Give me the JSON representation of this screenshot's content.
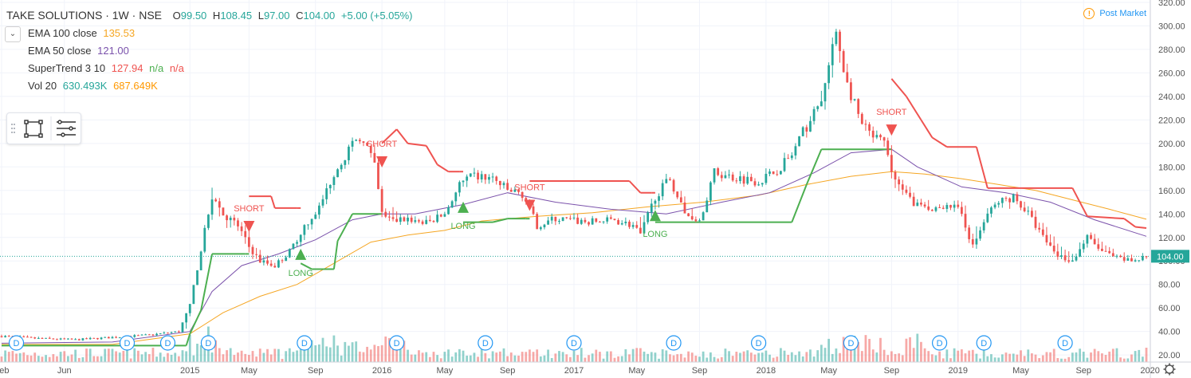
{
  "header": {
    "symbol": "TAKE SOLUTIONS · 1W · NSE",
    "o_label": "O",
    "o": "99.50",
    "h_label": "H",
    "h": "108.45",
    "l_label": "L",
    "l": "97.00",
    "c_label": "C",
    "c": "104.00",
    "change": "+5.00 (+5.05%)"
  },
  "indicators": [
    {
      "label": "EMA 100 close",
      "value": "135.53",
      "color": "#f5a623"
    },
    {
      "label": "EMA 50 close",
      "value": "121.00",
      "color": "#7b52ab"
    },
    {
      "label": "SuperTrend 3 10",
      "value": "127.94",
      "extra1": "n/a",
      "extra2": "n/a",
      "color": "#ef5350",
      "color2": "#4caf50"
    },
    {
      "label": "Vol 20",
      "value": "630.493K",
      "extra1": "687.649K",
      "color": "#26a69a",
      "color2": "#ff9800"
    }
  ],
  "status": {
    "label": "Post Market"
  },
  "price_tag": "104.00",
  "chart_data": {
    "type": "line",
    "x_ticks": [
      "Feb",
      "Jun",
      "2015",
      "May",
      "Sep",
      "2016",
      "May",
      "Sep",
      "2017",
      "May",
      "Sep",
      "2018",
      "May",
      "Sep",
      "2019",
      "May",
      "Sep",
      "2020"
    ],
    "y_ticks": [
      20,
      40,
      60,
      80,
      100,
      120,
      140,
      160,
      180,
      200,
      220,
      240,
      260,
      280,
      300,
      320
    ],
    "ylim": [
      14,
      322
    ],
    "x_index_range": [
      0,
      310
    ],
    "x_tick_index": [
      0,
      17,
      51,
      67,
      85,
      103,
      120,
      137,
      155,
      172,
      189,
      207,
      224,
      241,
      259,
      276,
      293,
      311
    ],
    "price_close": [
      [
        0,
        36
      ],
      [
        10,
        34
      ],
      [
        20,
        33
      ],
      [
        30,
        35
      ],
      [
        40,
        37
      ],
      [
        48,
        40
      ],
      [
        51,
        62
      ],
      [
        54,
        110
      ],
      [
        57,
        155
      ],
      [
        60,
        140
      ],
      [
        64,
        130
      ],
      [
        67,
        112
      ],
      [
        70,
        100
      ],
      [
        74,
        96
      ],
      [
        78,
        108
      ],
      [
        82,
        130
      ],
      [
        86,
        145
      ],
      [
        90,
        175
      ],
      [
        94,
        195
      ],
      [
        98,
        205
      ],
      [
        101,
        180
      ],
      [
        103,
        140
      ],
      [
        106,
        134
      ],
      [
        110,
        136
      ],
      [
        115,
        132
      ],
      [
        120,
        140
      ],
      [
        124,
        165
      ],
      [
        128,
        172
      ],
      [
        133,
        170
      ],
      [
        137,
        160
      ],
      [
        141,
        157
      ],
      [
        145,
        130
      ],
      [
        150,
        136
      ],
      [
        155,
        134
      ],
      [
        160,
        133
      ],
      [
        166,
        135
      ],
      [
        171,
        130
      ],
      [
        173,
        122
      ],
      [
        177,
        155
      ],
      [
        181,
        170
      ],
      [
        185,
        140
      ],
      [
        189,
        135
      ],
      [
        193,
        175
      ],
      [
        197,
        172
      ],
      [
        201,
        170
      ],
      [
        205,
        168
      ],
      [
        209,
        175
      ],
      [
        214,
        190
      ],
      [
        218,
        215
      ],
      [
        222,
        235
      ],
      [
        226,
        295
      ],
      [
        229,
        250
      ],
      [
        233,
        215
      ],
      [
        236,
        205
      ],
      [
        239,
        200
      ],
      [
        241,
        176
      ],
      [
        244,
        158
      ],
      [
        248,
        148
      ],
      [
        252,
        140
      ],
      [
        256,
        150
      ],
      [
        260,
        140
      ],
      [
        263,
        112
      ],
      [
        267,
        140
      ],
      [
        270,
        150
      ],
      [
        274,
        155
      ],
      [
        278,
        140
      ],
      [
        282,
        120
      ],
      [
        286,
        105
      ],
      [
        290,
        100
      ],
      [
        294,
        120
      ],
      [
        298,
        108
      ],
      [
        302,
        102
      ],
      [
        306,
        100
      ],
      [
        310,
        104
      ]
    ],
    "price_low": [
      [
        0,
        34
      ],
      [
        20,
        31
      ],
      [
        40,
        35
      ],
      [
        50,
        38
      ],
      [
        54,
        95
      ],
      [
        57,
        130
      ],
      [
        60,
        120
      ],
      [
        65,
        105
      ],
      [
        70,
        88
      ],
      [
        74,
        92
      ],
      [
        78,
        100
      ],
      [
        84,
        118
      ],
      [
        90,
        160
      ],
      [
        96,
        190
      ],
      [
        101,
        170
      ],
      [
        103,
        125
      ],
      [
        110,
        126
      ],
      [
        120,
        130
      ],
      [
        128,
        160
      ],
      [
        137,
        150
      ],
      [
        145,
        125
      ],
      [
        155,
        128
      ],
      [
        166,
        128
      ],
      [
        173,
        118
      ],
      [
        180,
        150
      ],
      [
        189,
        130
      ],
      [
        195,
        165
      ],
      [
        205,
        160
      ],
      [
        214,
        180
      ],
      [
        220,
        200
      ],
      [
        226,
        255
      ],
      [
        233,
        195
      ],
      [
        239,
        178
      ],
      [
        241,
        150
      ],
      [
        248,
        138
      ],
      [
        256,
        138
      ],
      [
        263,
        97
      ],
      [
        270,
        140
      ],
      [
        278,
        130
      ],
      [
        286,
        96
      ],
      [
        290,
        93
      ],
      [
        294,
        110
      ],
      [
        302,
        95
      ],
      [
        310,
        98
      ]
    ],
    "price_high": [
      [
        0,
        40
      ],
      [
        20,
        36
      ],
      [
        40,
        40
      ],
      [
        50,
        44
      ],
      [
        54,
        120
      ],
      [
        57,
        186
      ],
      [
        60,
        150
      ],
      [
        65,
        140
      ],
      [
        70,
        115
      ],
      [
        74,
        108
      ],
      [
        78,
        118
      ],
      [
        84,
        140
      ],
      [
        90,
        190
      ],
      [
        96,
        212
      ],
      [
        101,
        205
      ],
      [
        103,
        170
      ],
      [
        110,
        145
      ],
      [
        120,
        155
      ],
      [
        128,
        185
      ],
      [
        137,
        175
      ],
      [
        145,
        145
      ],
      [
        155,
        145
      ],
      [
        166,
        142
      ],
      [
        173,
        150
      ],
      [
        180,
        180
      ],
      [
        189,
        150
      ],
      [
        195,
        190
      ],
      [
        205,
        182
      ],
      [
        214,
        205
      ],
      [
        220,
        240
      ],
      [
        226,
        308
      ],
      [
        233,
        230
      ],
      [
        239,
        212
      ],
      [
        241,
        200
      ],
      [
        248,
        165
      ],
      [
        256,
        160
      ],
      [
        263,
        148
      ],
      [
        270,
        160
      ],
      [
        278,
        158
      ],
      [
        286,
        130
      ],
      [
        290,
        125
      ],
      [
        294,
        135
      ],
      [
        302,
        120
      ],
      [
        310,
        110
      ]
    ],
    "ema100": [
      [
        0,
        29
      ],
      [
        30,
        29
      ],
      [
        51,
        38
      ],
      [
        60,
        56
      ],
      [
        70,
        70
      ],
      [
        80,
        80
      ],
      [
        90,
        98
      ],
      [
        100,
        116
      ],
      [
        110,
        122
      ],
      [
        120,
        126
      ],
      [
        130,
        134
      ],
      [
        145,
        138
      ],
      [
        160,
        141
      ],
      [
        175,
        146
      ],
      [
        190,
        150
      ],
      [
        205,
        156
      ],
      [
        218,
        165
      ],
      [
        230,
        172
      ],
      [
        241,
        176
      ],
      [
        250,
        174
      ],
      [
        260,
        170
      ],
      [
        270,
        165
      ],
      [
        280,
        160
      ],
      [
        290,
        152
      ],
      [
        300,
        144
      ],
      [
        310,
        135.5
      ]
    ],
    "ema50": [
      [
        0,
        30
      ],
      [
        30,
        31
      ],
      [
        51,
        40
      ],
      [
        57,
        74
      ],
      [
        65,
        96
      ],
      [
        75,
        106
      ],
      [
        85,
        118
      ],
      [
        95,
        135
      ],
      [
        103,
        140
      ],
      [
        112,
        140
      ],
      [
        125,
        148
      ],
      [
        137,
        158
      ],
      [
        150,
        150
      ],
      [
        165,
        144
      ],
      [
        180,
        140
      ],
      [
        195,
        150
      ],
      [
        208,
        158
      ],
      [
        220,
        175
      ],
      [
        230,
        192
      ],
      [
        241,
        195
      ],
      [
        248,
        180
      ],
      [
        260,
        163
      ],
      [
        272,
        158
      ],
      [
        284,
        150
      ],
      [
        296,
        135
      ],
      [
        310,
        121
      ]
    ],
    "supertrend": [
      [
        0,
        28,
        "up"
      ],
      [
        50,
        28,
        "up"
      ],
      [
        51,
        38,
        "up"
      ],
      [
        54,
        58,
        "up"
      ],
      [
        57,
        106,
        "up"
      ],
      [
        66,
        106,
        "up"
      ],
      [
        67,
        155,
        "down"
      ],
      [
        73,
        155,
        "down"
      ],
      [
        74,
        145,
        "down"
      ],
      [
        80,
        145,
        "down"
      ],
      [
        81,
        98,
        "up"
      ],
      [
        84,
        93,
        "up"
      ],
      [
        90,
        93,
        "up"
      ],
      [
        91,
        117,
        "up"
      ],
      [
        95,
        140,
        "up"
      ],
      [
        102,
        140,
        "up"
      ],
      [
        103,
        200,
        "down"
      ],
      [
        107,
        212,
        "down"
      ],
      [
        110,
        200,
        "down"
      ],
      [
        115,
        198,
        "down"
      ],
      [
        118,
        182,
        "down"
      ],
      [
        121,
        176,
        "down"
      ],
      [
        124,
        176,
        "down"
      ],
      [
        125,
        133,
        "up"
      ],
      [
        129,
        133,
        "up"
      ],
      [
        133,
        133,
        "up"
      ],
      [
        137,
        136,
        "up"
      ],
      [
        142,
        136,
        "up"
      ],
      [
        143,
        168,
        "down"
      ],
      [
        170,
        168,
        "down"
      ],
      [
        173,
        158,
        "down"
      ],
      [
        176,
        158,
        "down"
      ],
      [
        177,
        133,
        "up"
      ],
      [
        214,
        133,
        "up"
      ],
      [
        218,
        165,
        "up"
      ],
      [
        222,
        195,
        "up"
      ],
      [
        240,
        195,
        "up"
      ],
      [
        241,
        255,
        "down"
      ],
      [
        245,
        240,
        "down"
      ],
      [
        249,
        220,
        "down"
      ],
      [
        252,
        205,
        "down"
      ],
      [
        256,
        197,
        "down"
      ],
      [
        264,
        197,
        "down"
      ],
      [
        267,
        162,
        "down"
      ],
      [
        290,
        162,
        "down"
      ],
      [
        294,
        138,
        "down"
      ],
      [
        304,
        136,
        "down"
      ],
      [
        307,
        129,
        "down"
      ],
      [
        310,
        128
      ]
    ],
    "volume_bars": 310,
    "signals": [
      {
        "label": "SHORT",
        "x": 67,
        "y": 130,
        "dir": "down"
      },
      {
        "label": "LONG",
        "x": 81,
        "y": 105,
        "dir": "up"
      },
      {
        "label": "SHORT",
        "x": 103,
        "y": 185,
        "dir": "down"
      },
      {
        "label": "LONG",
        "x": 125,
        "y": 145,
        "dir": "up"
      },
      {
        "label": "SHORT",
        "x": 143,
        "y": 148,
        "dir": "down"
      },
      {
        "label": "LONG",
        "x": 177,
        "y": 138,
        "dir": "up"
      },
      {
        "label": "SHORT",
        "x": 241,
        "y": 212,
        "dir": "down"
      }
    ],
    "dividends": [
      {
        "label": "D",
        "x": [
          4,
          34,
          45,
          56,
          82,
          107,
          131,
          155,
          182,
          205,
          230,
          254,
          266,
          288
        ]
      }
    ],
    "colors": {
      "up": "#26a69a",
      "down": "#ef5350",
      "st_up": "#4caf50",
      "st_down": "#ef5350",
      "ema100": "#f5a623",
      "ema50": "#7b52ab"
    }
  }
}
